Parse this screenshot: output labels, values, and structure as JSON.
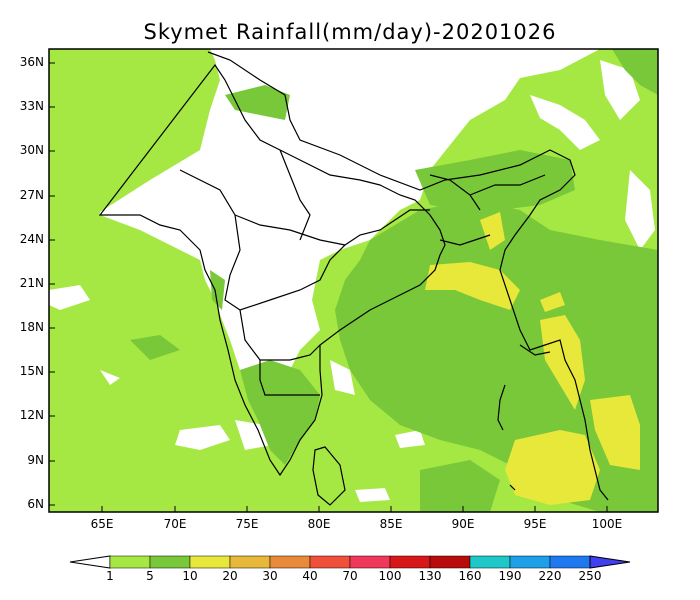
{
  "title": "Skymet Rainfall(mm/day)-20201026",
  "lat_labels": [
    "36N",
    "33N",
    "30N",
    "27N",
    "24N",
    "21N",
    "18N",
    "15N",
    "12N",
    "9N",
    "6N"
  ],
  "lon_labels": [
    "65E",
    "70E",
    "75E",
    "80E",
    "85E",
    "90E",
    "95E",
    "100E"
  ],
  "colorbar": {
    "labels": [
      "1",
      "5",
      "10",
      "20",
      "30",
      "40",
      "70",
      "100",
      "130",
      "160",
      "190",
      "220",
      "250"
    ],
    "colors": [
      "#ffffff",
      "#a6e843",
      "#78c83a",
      "#e8e83a",
      "#e8b83a",
      "#e88a3a",
      "#f0503a",
      "#f0385a",
      "#d81818",
      "#b80c0c",
      "#1ec8c8",
      "#1ea0e8",
      "#1e78f0",
      "#4040f0"
    ]
  },
  "palette": {
    "ocean": "#a6e843",
    "moderate": "#78c83a",
    "heavy": "#e8e83a",
    "dry": "#ffffff"
  }
}
